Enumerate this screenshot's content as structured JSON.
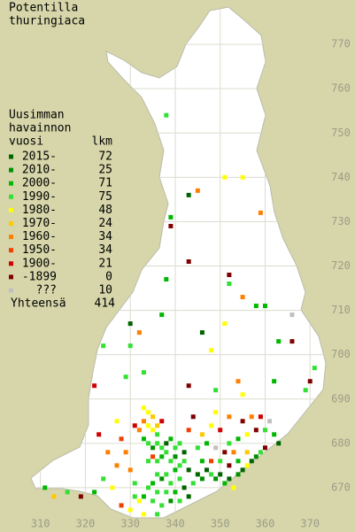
{
  "chart_data": {
    "type": "grid-map",
    "title_lines": [
      "Potentilla",
      "thuringiaca"
    ],
    "legend_header_lines": [
      "Uusimman",
      "havainnon",
      "vuosi"
    ],
    "count_header": "lkm",
    "legend": [
      {
        "label": "2015-",
        "count": 72,
        "color": "#006400"
      },
      {
        "label": "2010-",
        "count": 25,
        "color": "#009000"
      },
      {
        "label": "2000-",
        "count": 71,
        "color": "#00b800"
      },
      {
        "label": "1990-",
        "count": 75,
        "color": "#33e033"
      },
      {
        "label": "1980-",
        "count": 48,
        "color": "#ffff00"
      },
      {
        "label": "1970-",
        "count": 24,
        "color": "#ffc800"
      },
      {
        "label": "1960-",
        "count": 34,
        "color": "#ff8000"
      },
      {
        "label": "1950-",
        "count": 34,
        "color": "#f04000"
      },
      {
        "label": "1900-",
        "count": 21,
        "color": "#d00000"
      },
      {
        "label": "-1899",
        "count": 0,
        "color": "#800000"
      },
      {
        "label": "???",
        "count": 10,
        "color": "#c0c0c0"
      }
    ],
    "total_label": "Yhteensä",
    "total": 414,
    "xlim": [
      301,
      380
    ],
    "ylim": [
      660,
      780
    ],
    "xticks": [
      310,
      320,
      330,
      340,
      350,
      360,
      370
    ],
    "yticks": [
      670,
      680,
      690,
      700,
      710,
      720,
      730,
      740,
      750,
      760,
      770
    ],
    "records": [
      [
        338,
        754,
        3
      ],
      [
        343,
        736,
        0
      ],
      [
        345,
        737,
        6
      ],
      [
        351,
        740,
        4
      ],
      [
        355,
        740,
        4
      ],
      [
        339,
        731,
        2
      ],
      [
        339,
        729,
        9
      ],
      [
        359,
        732,
        6
      ],
      [
        343,
        721,
        9
      ],
      [
        352,
        718,
        9
      ],
      [
        338,
        717,
        2
      ],
      [
        352,
        716,
        3
      ],
      [
        355,
        713,
        6
      ],
      [
        358,
        711,
        2
      ],
      [
        360,
        711,
        2
      ],
      [
        366,
        709,
        10
      ],
      [
        337,
        709,
        2
      ],
      [
        330,
        707,
        0
      ],
      [
        332,
        705,
        6
      ],
      [
        346,
        705,
        0
      ],
      [
        351,
        707,
        4
      ],
      [
        366,
        703,
        9
      ],
      [
        363,
        703,
        2
      ],
      [
        324,
        702,
        3
      ],
      [
        330,
        702,
        3
      ],
      [
        348,
        701,
        4
      ],
      [
        371,
        697,
        3
      ],
      [
        370,
        694,
        9
      ],
      [
        322,
        693,
        8
      ],
      [
        329,
        695,
        3
      ],
      [
        333,
        696,
        3
      ],
      [
        343,
        693,
        9
      ],
      [
        354,
        694,
        6
      ],
      [
        362,
        694,
        2
      ],
      [
        355,
        691,
        4
      ],
      [
        349,
        692,
        3
      ],
      [
        369,
        692,
        3
      ],
      [
        333,
        688,
        4
      ],
      [
        334,
        687,
        4
      ],
      [
        335,
        686,
        5
      ],
      [
        333,
        685,
        6
      ],
      [
        334,
        684,
        4
      ],
      [
        335,
        683,
        4
      ],
      [
        336,
        682,
        3
      ],
      [
        336,
        684,
        5
      ],
      [
        337,
        685,
        8
      ],
      [
        332,
        683,
        6
      ],
      [
        333,
        681,
        2
      ],
      [
        334,
        680,
        3
      ],
      [
        335,
        679,
        1
      ],
      [
        336,
        680,
        3
      ],
      [
        337,
        679,
        3
      ],
      [
        338,
        680,
        0
      ],
      [
        339,
        681,
        2
      ],
      [
        340,
        679,
        3
      ],
      [
        341,
        680,
        3
      ],
      [
        342,
        678,
        0
      ],
      [
        338,
        678,
        3
      ],
      [
        337,
        677,
        2
      ],
      [
        336,
        676,
        3
      ],
      [
        335,
        677,
        7
      ],
      [
        334,
        676,
        3
      ],
      [
        339,
        676,
        3
      ],
      [
        340,
        677,
        1
      ],
      [
        341,
        675,
        3
      ],
      [
        342,
        676,
        3
      ],
      [
        343,
        674,
        0
      ],
      [
        340,
        674,
        2
      ],
      [
        338,
        673,
        3
      ],
      [
        337,
        672,
        1
      ],
      [
        336,
        673,
        3
      ],
      [
        335,
        671,
        2
      ],
      [
        339,
        671,
        3
      ],
      [
        341,
        672,
        3
      ],
      [
        342,
        670,
        0
      ],
      [
        340,
        669,
        2
      ],
      [
        338,
        669,
        3
      ],
      [
        336,
        669,
        3
      ],
      [
        334,
        670,
        3
      ],
      [
        333,
        668,
        2
      ],
      [
        332,
        667,
        4
      ],
      [
        331,
        668,
        3
      ],
      [
        335,
        667,
        3
      ],
      [
        337,
        666,
        3
      ],
      [
        339,
        667,
        1
      ],
      [
        341,
        667,
        3
      ],
      [
        343,
        668,
        0
      ],
      [
        344,
        671,
        3
      ],
      [
        345,
        673,
        0
      ],
      [
        346,
        672,
        1
      ],
      [
        347,
        674,
        0
      ],
      [
        348,
        673,
        3
      ],
      [
        349,
        672,
        1
      ],
      [
        350,
        673,
        0
      ],
      [
        351,
        671,
        2
      ],
      [
        352,
        672,
        0
      ],
      [
        353,
        670,
        4
      ],
      [
        354,
        673,
        1
      ],
      [
        355,
        674,
        0
      ],
      [
        356,
        675,
        4
      ],
      [
        357,
        676,
        0
      ],
      [
        358,
        677,
        1
      ],
      [
        359,
        678,
        3
      ],
      [
        360,
        679,
        9
      ],
      [
        346,
        676,
        2
      ],
      [
        348,
        676,
        7
      ],
      [
        350,
        676,
        3
      ],
      [
        352,
        675,
        9
      ],
      [
        354,
        676,
        2
      ],
      [
        356,
        678,
        5
      ],
      [
        352,
        680,
        3
      ],
      [
        354,
        681,
        2
      ],
      [
        356,
        682,
        4
      ],
      [
        358,
        683,
        9
      ],
      [
        350,
        683,
        8
      ],
      [
        348,
        684,
        4
      ],
      [
        346,
        682,
        5
      ],
      [
        355,
        685,
        9
      ],
      [
        357,
        686,
        6
      ],
      [
        359,
        686,
        8
      ],
      [
        361,
        685,
        10
      ],
      [
        352,
        686,
        6
      ],
      [
        349,
        687,
        4
      ],
      [
        344,
        686,
        9
      ],
      [
        343,
        683,
        7
      ],
      [
        345,
        679,
        3
      ],
      [
        347,
        680,
        2
      ],
      [
        349,
        679,
        10
      ],
      [
        351,
        678,
        9
      ],
      [
        353,
        678,
        6
      ],
      [
        360,
        683,
        3
      ],
      [
        362,
        682,
        2
      ],
      [
        363,
        680,
        0
      ],
      [
        322,
        669,
        2
      ],
      [
        319,
        668,
        9
      ],
      [
        316,
        669,
        3
      ],
      [
        313,
        668,
        5
      ],
      [
        311,
        670,
        2
      ],
      [
        326,
        670,
        4
      ],
      [
        324,
        672,
        3
      ],
      [
        327,
        675,
        6
      ],
      [
        325,
        678,
        6
      ],
      [
        329,
        678,
        6
      ],
      [
        328,
        681,
        7
      ],
      [
        331,
        684,
        8
      ],
      [
        327,
        685,
        4
      ],
      [
        323,
        682,
        8
      ],
      [
        330,
        674,
        6
      ],
      [
        331,
        671,
        3
      ],
      [
        328,
        666,
        7
      ],
      [
        330,
        665,
        4
      ],
      [
        333,
        664,
        4
      ],
      [
        336,
        664,
        3
      ]
    ]
  }
}
